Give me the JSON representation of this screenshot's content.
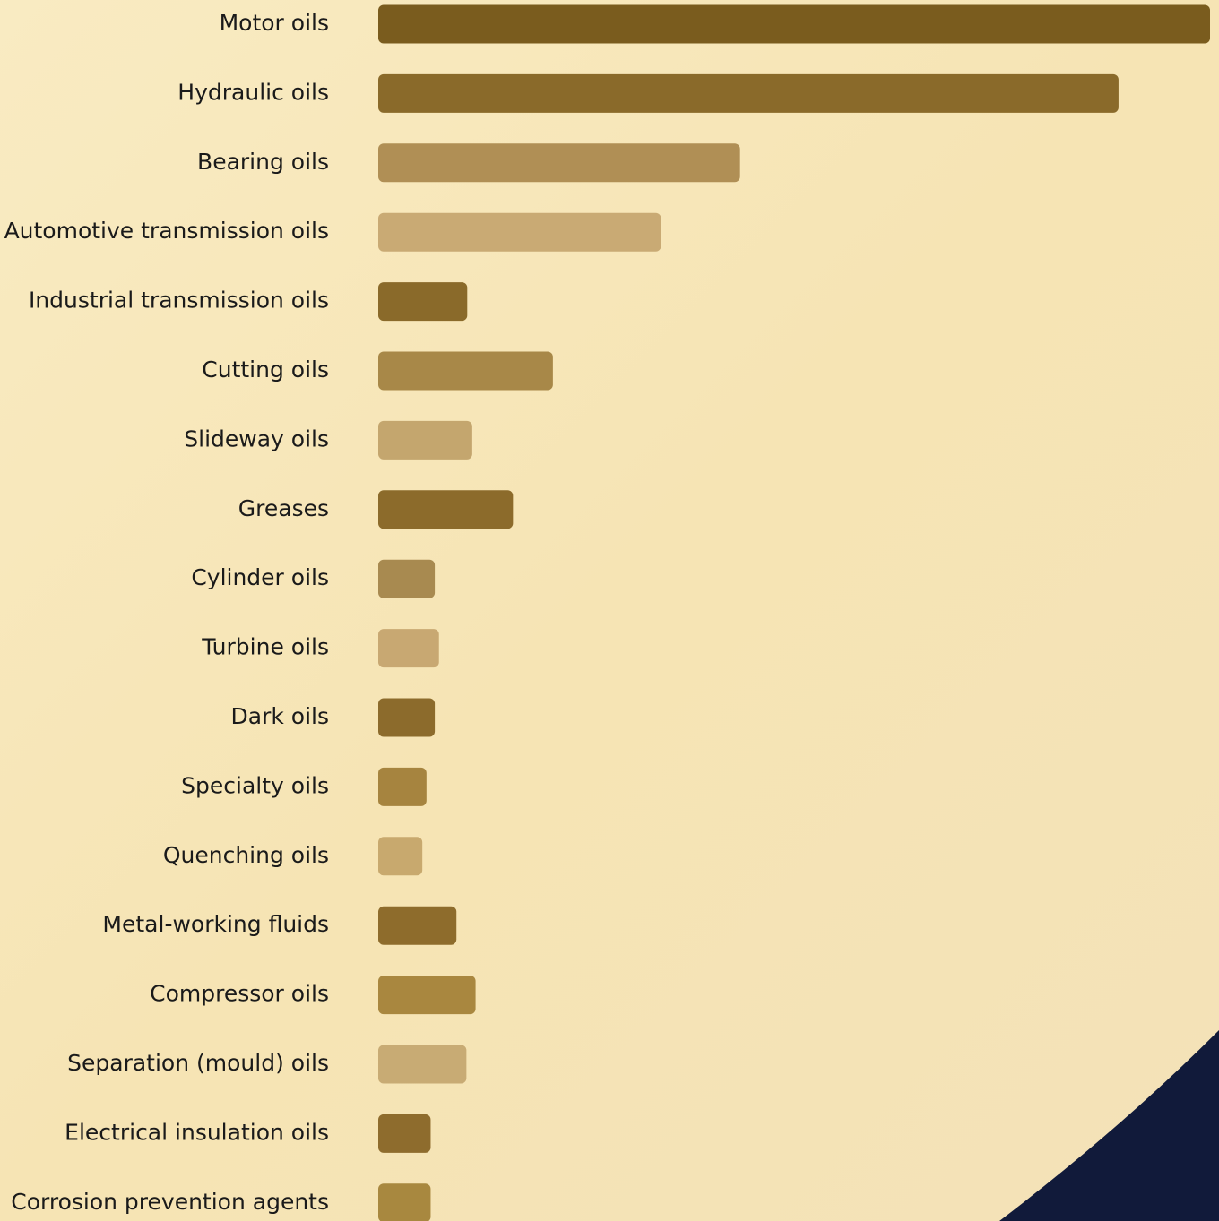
{
  "chart_data": {
    "type": "barh",
    "categories": [
      "Motor oils",
      "Hydraulic oils",
      "Bearing oils",
      "Automotive transmission oils",
      "Industrial transmission oils",
      "Cutting oils",
      "Slideway oils",
      "Greases",
      "Cylinder oils",
      "Turbine oils",
      "Dark oils",
      "Specialty oils",
      "Quenching oils",
      "Metal-working fluids",
      "Compressor oils",
      "Separation (mould) oils",
      "Electrical insulation oils",
      "Corrosion prevention agents"
    ],
    "values": [
      100,
      89,
      43.5,
      34,
      10.7,
      21,
      11.3,
      16.2,
      6.8,
      7.3,
      6.8,
      5.8,
      5.3,
      9.4,
      11.7,
      10.6,
      6.3,
      6.3
    ],
    "colors": [
      "#7a5c1e",
      "#8a6a2a",
      "#b08f55",
      "#c9aa74",
      "#8a6a2a",
      "#a88848",
      "#c4a66e",
      "#8c6b2b",
      "#a88a50",
      "#c8a872",
      "#8c6b2c",
      "#a6843f",
      "#c8a96e",
      "#8e6c2c",
      "#a9873f",
      "#c8ab74",
      "#8e6c2d",
      "#a8883f"
    ]
  }
}
